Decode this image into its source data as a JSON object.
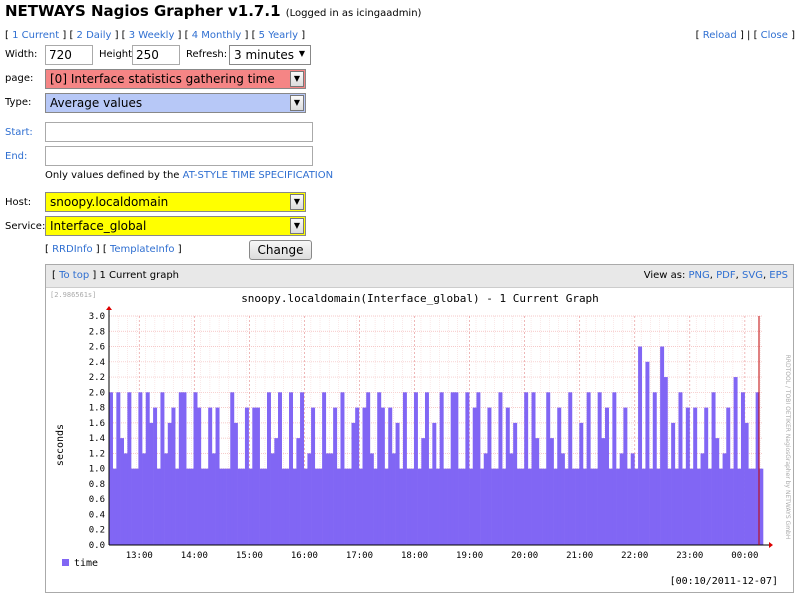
{
  "app": {
    "title": "NETWAYS Nagios Grapher v1.7.1",
    "login_note": "(Logged in as icingaadmin)"
  },
  "nav": {
    "ranges": [
      "1 Current",
      "2 Daily",
      "3 Weekly",
      "4 Monthly",
      "5 Yearly"
    ],
    "reload": "Reload",
    "close": "Close"
  },
  "form": {
    "width_label": "Width:",
    "width_value": "720",
    "height_label": "Height:",
    "height_value": "250",
    "refresh_label": "Refresh:",
    "refresh_value": "3 minutes",
    "page_label": "page:",
    "page_value": "[0] Interface statistics gathering time",
    "type_label": "Type:",
    "type_value": "Average values",
    "start_label": "Start:",
    "start_value": "",
    "end_label": "End:",
    "end_value": "",
    "note_prefix": "Only values defined by the ",
    "note_link": "AT-STYLE TIME SPECIFICATION",
    "host_label": "Host:",
    "host_value": "snoopy.localdomain",
    "service_label": "Service:",
    "service_value": "Interface_global",
    "rrdinfo": "RRDInfo",
    "templateinfo": "TemplateInfo",
    "change_button": "Change"
  },
  "colors": {
    "page_select": "#f58585",
    "type_select": "#b7c8f7",
    "host_select": "#ffff00",
    "bars": "#8166f4"
  },
  "graph_panel": {
    "to_top": "To top",
    "heading": "1 Current graph",
    "view_as": "View as:",
    "formats": [
      "PNG",
      "PDF",
      "SVG",
      "EPS"
    ]
  },
  "chart_data": {
    "type": "bar",
    "title": "snoopy.localdomain(Interface_global) - 1 Current Graph",
    "corner_value": "[2.986561s]",
    "ylabel": "seconds",
    "ylim": [
      0,
      3.0
    ],
    "y_ticks": [
      "0.0",
      "0.2",
      "0.4",
      "0.6",
      "0.8",
      "1.0",
      "1.2",
      "1.4",
      "1.6",
      "1.8",
      "2.0",
      "2.2",
      "2.4",
      "2.6",
      "2.8",
      "3.0"
    ],
    "x_ticks": [
      "13:00",
      "14:00",
      "15:00",
      "16:00",
      "17:00",
      "18:00",
      "19:00",
      "20:00",
      "21:00",
      "22:00",
      "23:00",
      "00:00"
    ],
    "side_text": "RRDTOOL / TOBI OETIKER   NagiosGrapher by NETWAYS GmbH",
    "legend": "time",
    "footer": "[00:10/2011-12-07]",
    "values": [
      2.0,
      1.0,
      2.0,
      1.4,
      1.2,
      2.0,
      1.0,
      1.0,
      2.0,
      1.2,
      2.0,
      1.6,
      1.8,
      1.0,
      2.0,
      1.2,
      1.6,
      1.8,
      1.0,
      2.0,
      2.0,
      1.0,
      1.0,
      2.0,
      1.8,
      1.0,
      1.0,
      1.8,
      1.2,
      1.8,
      1.0,
      1.0,
      1.0,
      2.0,
      1.6,
      1.0,
      1.0,
      1.8,
      1.0,
      1.8,
      1.8,
      1.0,
      1.0,
      2.0,
      1.2,
      1.4,
      2.0,
      1.0,
      1.0,
      2.0,
      1.0,
      1.4,
      2.0,
      1.0,
      1.2,
      1.8,
      1.0,
      1.0,
      2.0,
      1.2,
      1.2,
      1.8,
      1.0,
      2.0,
      1.0,
      1.0,
      1.6,
      1.8,
      1.0,
      1.8,
      2.0,
      1.2,
      1.0,
      2.0,
      1.8,
      1.0,
      1.8,
      1.2,
      1.6,
      1.0,
      2.0,
      1.0,
      1.0,
      2.0,
      1.0,
      1.4,
      2.0,
      1.0,
      1.6,
      1.0,
      2.0,
      1.0,
      1.0,
      2.0,
      2.0,
      1.0,
      1.0,
      2.0,
      1.0,
      1.8,
      2.0,
      1.0,
      1.2,
      1.8,
      1.0,
      1.0,
      2.0,
      1.0,
      1.8,
      1.2,
      1.6,
      1.0,
      1.0,
      2.0,
      1.0,
      2.0,
      1.4,
      1.0,
      1.0,
      2.0,
      1.4,
      1.0,
      1.8,
      1.2,
      1.0,
      2.0,
      1.0,
      1.0,
      1.6,
      1.0,
      2.0,
      1.0,
      1.0,
      2.0,
      1.4,
      1.8,
      1.0,
      2.0,
      1.0,
      1.2,
      1.8,
      1.0,
      1.2,
      1.0,
      2.6,
      1.0,
      2.4,
      1.0,
      2.0,
      1.0,
      2.6,
      2.2,
      1.0,
      1.6,
      1.0,
      2.0,
      1.0,
      1.8,
      1.0,
      1.8,
      1.0,
      1.2,
      1.8,
      1.0,
      2.0,
      1.4,
      1.0,
      1.2,
      1.8,
      1.0,
      2.2,
      1.0,
      2.0,
      1.6,
      1.0,
      1.0,
      2.0,
      1.0
    ],
    "grid": true
  }
}
